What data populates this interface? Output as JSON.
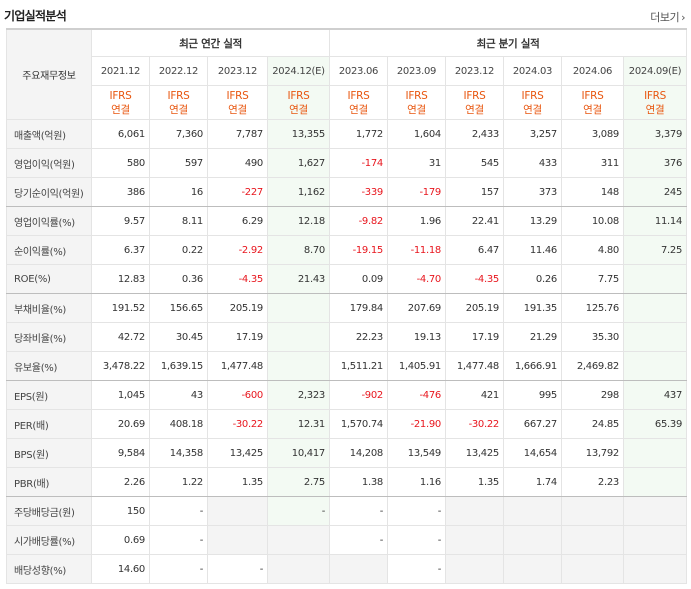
{
  "section_title": "기업실적분석",
  "more_link": "더보기",
  "header": {
    "corner": "주요재무정보",
    "annual_group": "최근 연간 실적",
    "quarter_group": "최근 분기 실적",
    "annual_periods": [
      "2021.12",
      "2022.12",
      "2023.12",
      "2024.12(E)"
    ],
    "quarter_periods": [
      "2023.06",
      "2023.09",
      "2023.12",
      "2024.03",
      "2024.06",
      "2024.09(E)"
    ],
    "standard_top": "IFRS",
    "standard_bottom": "연결"
  },
  "rows": [
    {
      "label": "매출액(억원)",
      "values": [
        "6,061",
        "7,360",
        "7,787",
        "13,355",
        "1,772",
        "1,604",
        "2,433",
        "3,257",
        "3,089",
        "3,379"
      ]
    },
    {
      "label": "영업이익(억원)",
      "values": [
        "580",
        "597",
        "490",
        "1,627",
        "-174",
        "31",
        "545",
        "433",
        "311",
        "376"
      ]
    },
    {
      "label": "당기순이익(억원)",
      "values": [
        "386",
        "16",
        "-227",
        "1,162",
        "-339",
        "-179",
        "157",
        "373",
        "148",
        "245"
      ]
    },
    {
      "label": "영업이익률(%)",
      "values": [
        "9.57",
        "8.11",
        "6.29",
        "12.18",
        "-9.82",
        "1.96",
        "22.41",
        "13.29",
        "10.08",
        "11.14"
      ]
    },
    {
      "label": "순이익률(%)",
      "values": [
        "6.37",
        "0.22",
        "-2.92",
        "8.70",
        "-19.15",
        "-11.18",
        "6.47",
        "11.46",
        "4.80",
        "7.25"
      ]
    },
    {
      "label": "ROE(%)",
      "values": [
        "12.83",
        "0.36",
        "-4.35",
        "21.43",
        "0.09",
        "-4.70",
        "-4.35",
        "0.26",
        "7.75",
        ""
      ]
    },
    {
      "label": "부채비율(%)",
      "values": [
        "191.52",
        "156.65",
        "205.19",
        "",
        "179.84",
        "207.69",
        "205.19",
        "191.35",
        "125.76",
        ""
      ]
    },
    {
      "label": "당좌비율(%)",
      "values": [
        "42.72",
        "30.45",
        "17.19",
        "",
        "22.23",
        "19.13",
        "17.19",
        "21.29",
        "35.30",
        ""
      ]
    },
    {
      "label": "유보율(%)",
      "values": [
        "3,478.22",
        "1,639.15",
        "1,477.48",
        "",
        "1,511.21",
        "1,405.91",
        "1,477.48",
        "1,666.91",
        "2,469.82",
        ""
      ]
    },
    {
      "label": "EPS(원)",
      "values": [
        "1,045",
        "43",
        "-600",
        "2,323",
        "-902",
        "-476",
        "421",
        "995",
        "298",
        "437"
      ]
    },
    {
      "label": "PER(배)",
      "values": [
        "20.69",
        "408.18",
        "-30.22",
        "12.31",
        "1,570.74",
        "-21.90",
        "-30.22",
        "667.27",
        "24.85",
        "65.39"
      ]
    },
    {
      "label": "BPS(원)",
      "values": [
        "9,584",
        "14,358",
        "13,425",
        "10,417",
        "14,208",
        "13,549",
        "13,425",
        "14,654",
        "13,792",
        ""
      ]
    },
    {
      "label": "PBR(배)",
      "values": [
        "2.26",
        "1.22",
        "1.35",
        "2.75",
        "1.38",
        "1.16",
        "1.35",
        "1.74",
        "2.23",
        ""
      ]
    },
    {
      "label": "주당배당금(원)",
      "values": [
        "150",
        "-",
        "",
        "-",
        "-",
        "-",
        "",
        "",
        "",
        ""
      ]
    },
    {
      "label": "시가배당률(%)",
      "values": [
        "0.69",
        "-",
        "",
        "",
        "-",
        "-",
        "",
        "",
        "",
        ""
      ]
    },
    {
      "label": "배당성향(%)",
      "values": [
        "14.60",
        "-",
        "-",
        "",
        "",
        "-",
        "",
        "",
        "",
        ""
      ]
    }
  ],
  "colors": {
    "negative": "#e8161e",
    "standard": "#e8560f",
    "estimate_bg": "#f3faf3"
  }
}
